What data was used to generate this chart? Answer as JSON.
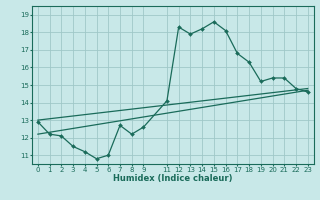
{
  "xlabel": "Humidex (Indice chaleur)",
  "bg_color": "#c8e8e8",
  "line_color": "#1a6b5a",
  "grid_color": "#a0c8c8",
  "series1_x": [
    0,
    1,
    2,
    3,
    4,
    5,
    6,
    7,
    8,
    9,
    11,
    12,
    13,
    14,
    15,
    16,
    17,
    18,
    19,
    20,
    21,
    22,
    23
  ],
  "series1_y": [
    12.9,
    12.2,
    12.1,
    11.5,
    11.2,
    10.8,
    11.0,
    12.7,
    12.2,
    12.6,
    14.1,
    18.3,
    17.9,
    18.2,
    18.6,
    18.1,
    16.8,
    16.3,
    15.2,
    15.4,
    15.4,
    14.8,
    14.6
  ],
  "series2_x": [
    0,
    23
  ],
  "series2_y": [
    12.2,
    14.7
  ],
  "series3_x": [
    0,
    23
  ],
  "series3_y": [
    13.0,
    14.8
  ],
  "xlim": [
    -0.5,
    23.5
  ],
  "ylim": [
    10.5,
    19.5
  ],
  "xticks": [
    0,
    1,
    2,
    3,
    4,
    5,
    6,
    7,
    8,
    9,
    11,
    12,
    13,
    14,
    15,
    16,
    17,
    18,
    19,
    20,
    21,
    22,
    23
  ],
  "yticks": [
    11,
    12,
    13,
    14,
    15,
    16,
    17,
    18,
    19
  ],
  "xlabel_fontsize": 6.0,
  "tick_fontsize": 5.0
}
